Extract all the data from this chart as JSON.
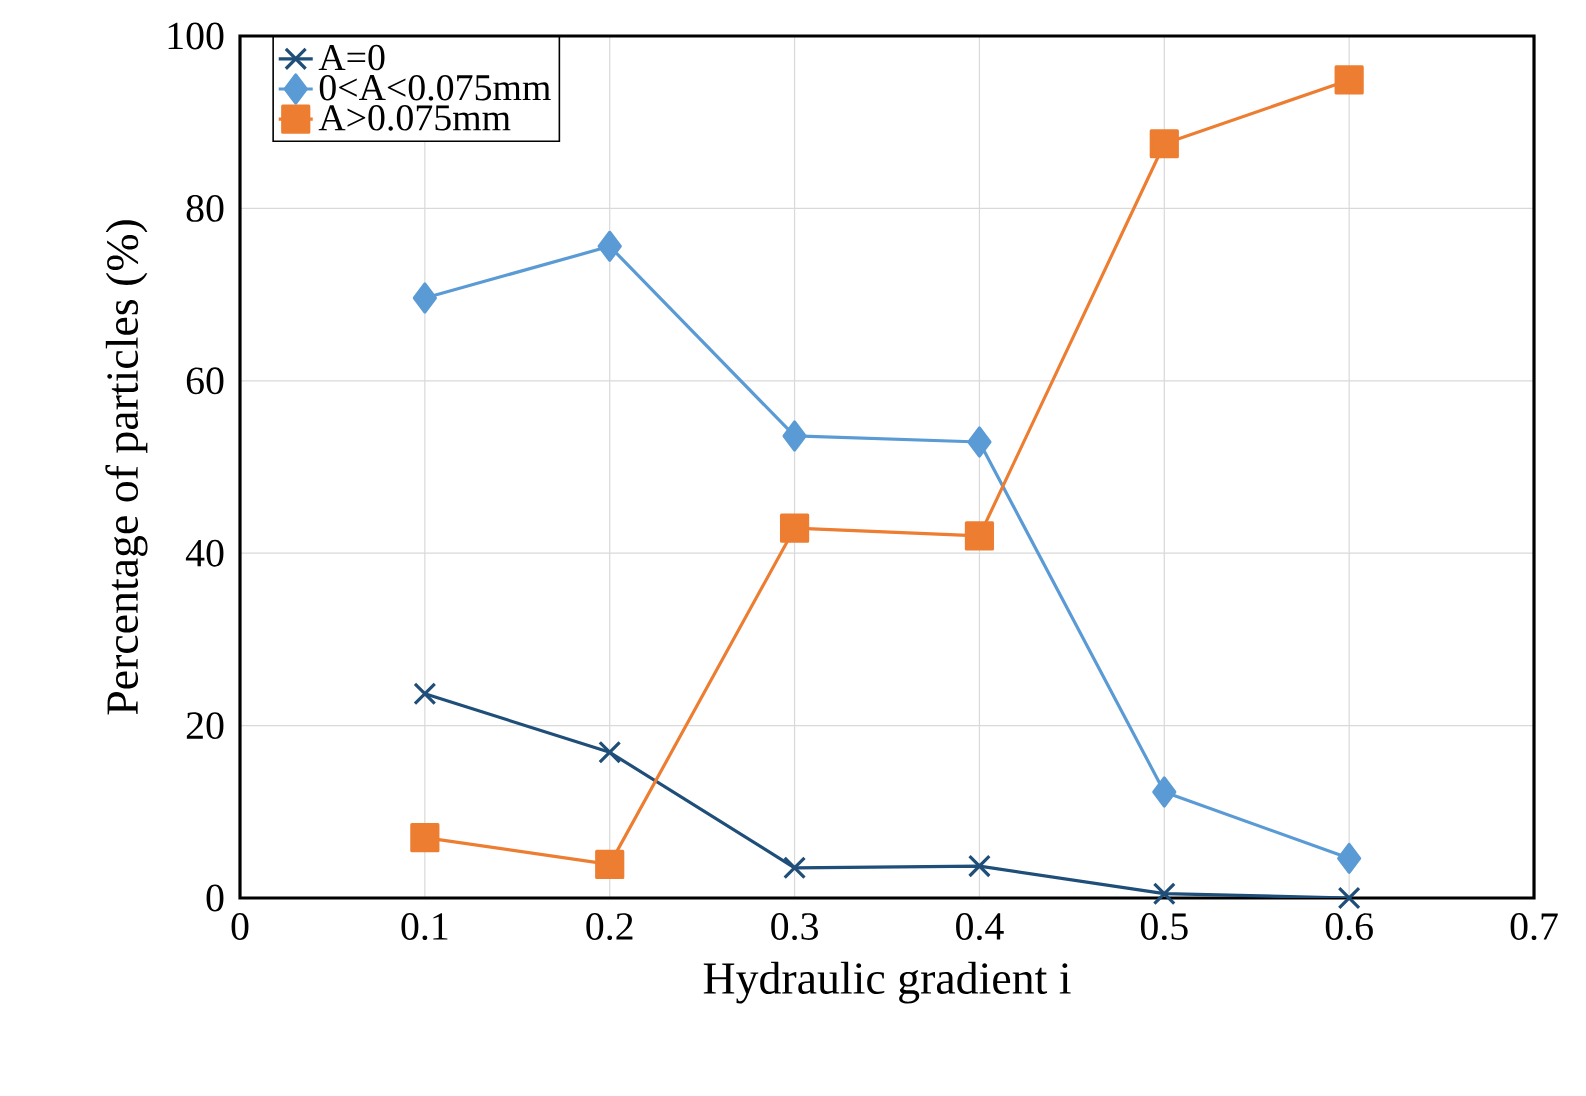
{
  "chart_data": {
    "type": "line",
    "xlabel": "Hydraulic gradient i",
    "ylabel": "Percentage of particles  (%)",
    "x": [
      0.1,
      0.2,
      0.3,
      0.4,
      0.5,
      0.6
    ],
    "series": [
      {
        "name": "A=0",
        "color": "#1f4e79",
        "marker": "cross",
        "values": [
          23.7,
          16.9,
          3.5,
          3.7,
          0.5,
          0
        ]
      },
      {
        "name": "0<A<0.075mm",
        "color": "#5b9bd5",
        "marker": "diamond",
        "values": [
          69.6,
          75.6,
          53.6,
          52.9,
          12.3,
          4.6
        ]
      },
      {
        "name": "A>0.075mm",
        "color": "#ed7d31",
        "marker": "square",
        "values": [
          7.0,
          3.9,
          42.9,
          42.0,
          87.5,
          94.9
        ]
      }
    ],
    "xlim": [
      0,
      0.7
    ],
    "xticks": [
      0,
      0.1,
      0.2,
      0.3,
      0.4,
      0.5,
      0.6,
      0.7
    ],
    "ylim": [
      0,
      100
    ],
    "yticks": [
      0,
      20,
      40,
      60,
      80,
      100
    ],
    "grid": true,
    "legend": "top left",
    "line_style": "solid"
  }
}
